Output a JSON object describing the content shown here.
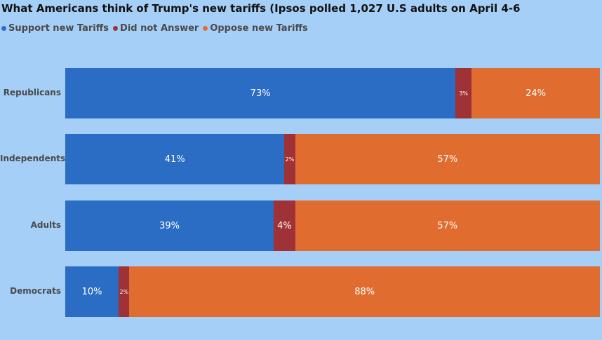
{
  "chart_data": {
    "type": "bar",
    "orientation": "horizontal",
    "stacked": true,
    "title": "What Americans think of Trump's new tariffs (Ipsos polled 1,027 U.S adults on April 4-6",
    "categories": [
      "Republicans",
      "Independents",
      "Adults",
      "Democrats"
    ],
    "series": [
      {
        "name": "Support new Tariffs",
        "color": "#2b6cc4",
        "values": [
          73,
          41,
          39,
          10
        ],
        "labels": [
          "73%",
          "41%",
          "39%",
          "10%"
        ]
      },
      {
        "name": "Did not Answer",
        "color": "#9e3236",
        "values": [
          3,
          2,
          4,
          2
        ],
        "labels": [
          "3%",
          "2%",
          "4%",
          "2%"
        ]
      },
      {
        "name": "Oppose new Tariffs",
        "color": "#e06c30",
        "values": [
          24,
          57,
          57,
          88
        ],
        "labels": [
          "24%",
          "57%",
          "57%",
          "88%"
        ]
      }
    ],
    "legend_position": "top-left"
  }
}
